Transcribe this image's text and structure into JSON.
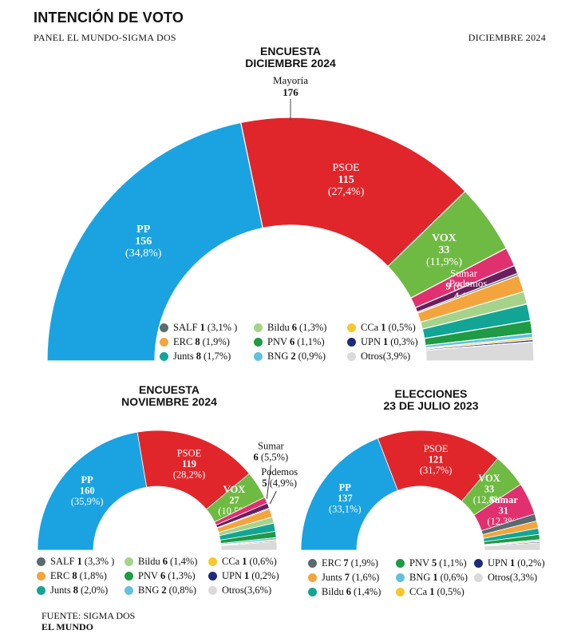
{
  "header": {
    "title": "INTENCIÓN DE VOTO",
    "subtitle": "PANEL EL MUNDO-SIGMA DOS",
    "date": "DICIEMBRE 2024"
  },
  "footer": {
    "source": "FUENTE: SIGMA DOS",
    "brand": "EL MUNDO"
  },
  "chart_data": [
    {
      "type": "hemicycle",
      "id": "dic",
      "title_line1": "ENCUESTA",
      "title_line2": "DICIEMBRE 2024",
      "majority_label": "Mayoría",
      "majority_value": "176",
      "total_seats": 350,
      "parties": [
        {
          "name": "PP",
          "seats": 156,
          "pct": "(34,8%)",
          "color": "#1aa3e0",
          "label_style": "stack-white"
        },
        {
          "name": "PSOE",
          "seats": 115,
          "pct": "(27,4%)",
          "color": "#e1262b",
          "label_style": "stack-white"
        },
        {
          "name": "VOX",
          "seats": 33,
          "pct": "(11,9%)",
          "color": "#6fba43",
          "label_style": "stack-white-boldname"
        },
        {
          "name": "Sumar",
          "seats": 9,
          "pct": "(6,2%)",
          "color": "#e1306f",
          "label_style": "inline-white"
        },
        {
          "name": "Podemos",
          "seats": 4,
          "pct": "(5%)",
          "color": "#6b1e5e",
          "label_style": "inline-white"
        },
        {
          "name": "SALF",
          "seats": 1,
          "pct": "(3,1% )",
          "color": "#5b6a6f"
        },
        {
          "name": "ERC",
          "seats": 8,
          "pct": "(1,9%)",
          "color": "#f3a43c"
        },
        {
          "name": "Bildu",
          "seats": 6,
          "pct": "(1,3%)",
          "color": "#a6d38a"
        },
        {
          "name": "Junts",
          "seats": 8,
          "pct": "(1,7%)",
          "color": "#12a595"
        },
        {
          "name": "PNV",
          "seats": 6,
          "pct": "(1,1%)",
          "color": "#1f9a45"
        },
        {
          "name": "BNG",
          "seats": 2,
          "pct": "(0,9%)",
          "color": "#62c1df"
        },
        {
          "name": "CCa",
          "seats": 1,
          "pct": "(0,5%)",
          "color": "#f6c82c"
        },
        {
          "name": "UPN",
          "seats": 1,
          "pct": "(0,3%)",
          "color": "#1f2a78"
        },
        {
          "name": "Otros",
          "seats": null,
          "pct": "(3,9%)",
          "color": "#dadada"
        }
      ],
      "legend": [
        [
          "SALF",
          "Bildu",
          "CCa"
        ],
        [
          "ERC",
          "PNV",
          "UPN"
        ],
        [
          "Junts",
          "BNG",
          "Otros"
        ]
      ]
    },
    {
      "type": "hemicycle",
      "id": "nov",
      "title_line1": "ENCUESTA",
      "title_line2": "NOVIEMBRE 2024",
      "total_seats": 350,
      "parties": [
        {
          "name": "PP",
          "seats": 160,
          "pct": "(35,9%)",
          "color": "#1aa3e0",
          "label_style": "stack-white-boldname"
        },
        {
          "name": "PSOE",
          "seats": 119,
          "pct": "(28,2%)",
          "color": "#e1262b",
          "label_style": "stack-white"
        },
        {
          "name": "VOX",
          "seats": 27,
          "pct": "(10,5%)",
          "color": "#6fba43",
          "label_style": "stack-white-boldname"
        },
        {
          "name": "Sumar",
          "seats": 6,
          "pct": "(5,5%)",
          "color": "#e1306f",
          "label_style": "outside"
        },
        {
          "name": "Podemos",
          "seats": 5,
          "pct": "(4,9%)",
          "color": "#6b1e5e",
          "label_style": "outside"
        },
        {
          "name": "SALF",
          "seats": 1,
          "pct": "(3,3% )",
          "color": "#5b6a6f"
        },
        {
          "name": "ERC",
          "seats": 8,
          "pct": "(1,8%)",
          "color": "#f3a43c"
        },
        {
          "name": "Bildu",
          "seats": 6,
          "pct": "(1,4%)",
          "color": "#a6d38a"
        },
        {
          "name": "Junts",
          "seats": 8,
          "pct": "(2,0%)",
          "color": "#12a595"
        },
        {
          "name": "PNV",
          "seats": 6,
          "pct": "(1,3%)",
          "color": "#1f9a45"
        },
        {
          "name": "BNG",
          "seats": 2,
          "pct": "(0,8%)",
          "color": "#62c1df"
        },
        {
          "name": "CCa",
          "seats": 1,
          "pct": "(0,6%)",
          "color": "#f6c82c"
        },
        {
          "name": "UPN",
          "seats": 1,
          "pct": "(0,2%)",
          "color": "#1f2a78"
        },
        {
          "name": "Otros",
          "seats": null,
          "pct": "(3,6%)",
          "color": "#dadada"
        }
      ],
      "legend": [
        [
          "SALF",
          "Bildu",
          "CCa"
        ],
        [
          "ERC",
          "PNV",
          "UPN"
        ],
        [
          "Junts",
          "BNG",
          "Otros"
        ]
      ]
    },
    {
      "type": "hemicycle",
      "id": "jul",
      "title_line1": "ELECCIONES",
      "title_line2": "23 DE JULIO 2023",
      "total_seats": 350,
      "parties": [
        {
          "name": "PP",
          "seats": 137,
          "pct": "(33,1%)",
          "color": "#1aa3e0",
          "label_style": "stack-white-boldname"
        },
        {
          "name": "PSOE",
          "seats": 121,
          "pct": "(31,7%)",
          "color": "#e1262b",
          "label_style": "stack-white"
        },
        {
          "name": "VOX",
          "seats": 33,
          "pct": "(12,4%)",
          "color": "#6fba43",
          "label_style": "stack-white-boldname"
        },
        {
          "name": "Sumar",
          "seats": 31,
          "pct": "(12,3%)",
          "color": "#e1306f",
          "label_style": "stack-white-boldname"
        },
        {
          "name": "ERC",
          "seats": 7,
          "pct": "(1,9%)",
          "color": "#5b6a6f"
        },
        {
          "name": "Junts",
          "seats": 7,
          "pct": "(1,6%)",
          "color": "#f3a43c"
        },
        {
          "name": "Bildu",
          "seats": 6,
          "pct": "(1,4%)",
          "color": "#12a595"
        },
        {
          "name": "PNV",
          "seats": 5,
          "pct": "(1,1%)",
          "color": "#1f9a45"
        },
        {
          "name": "BNG",
          "seats": 1,
          "pct": "(0,6%)",
          "color": "#62c1df"
        },
        {
          "name": "CCa",
          "seats": 1,
          "pct": "(0,5%)",
          "color": "#f6c82c"
        },
        {
          "name": "UPN",
          "seats": 1,
          "pct": "(0,2%)",
          "color": "#1f2a78"
        },
        {
          "name": "Otros",
          "seats": null,
          "pct": "(3,3%)",
          "color": "#dadada"
        }
      ],
      "legend": [
        [
          "ERC",
          "PNV",
          "UPN"
        ],
        [
          "Junts",
          "BNG",
          "Otros"
        ],
        [
          "Bildu",
          "CCa"
        ]
      ]
    }
  ]
}
